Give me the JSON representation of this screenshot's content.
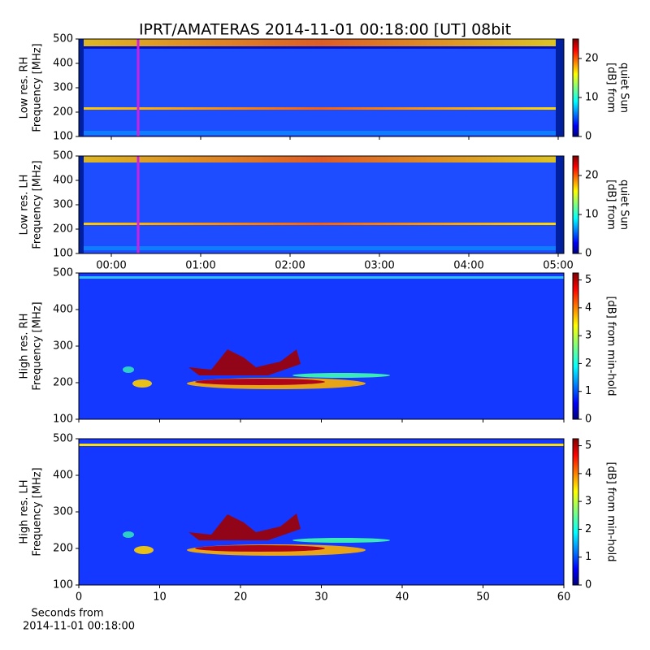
{
  "title": "IPRT/AMATERAS 2014-11-01 00:18:00 [UT]   08bit",
  "chart_data": [
    {
      "type": "spectrogram",
      "ylabel": [
        "Low res. RH",
        "Frequency [MHz]"
      ],
      "ylim": [
        100,
        500
      ],
      "yticks": [
        100,
        200,
        300,
        400,
        500
      ],
      "xlim": [
        -0.3636,
        5.0636
      ],
      "xticks": [
        {
          "value": 0,
          "label": "00:00"
        },
        {
          "value": 1,
          "label": "01:00"
        },
        {
          "value": 2,
          "label": "02:00"
        },
        {
          "value": 3,
          "label": "03:00"
        },
        {
          "value": 4,
          "label": "04:00"
        },
        {
          "value": 5,
          "label": "05:00"
        }
      ],
      "xticklabels": false,
      "marker": {
        "x": 0.3,
        "color": "#cc22dd"
      },
      "colorbar": {
        "label": [
          "[dB] from",
          "quiet Sun"
        ],
        "lim": [
          0,
          25
        ],
        "ticks": [
          0,
          10,
          20
        ]
      }
    },
    {
      "type": "spectrogram",
      "ylabel": [
        "Low res. LH",
        "Frequency [MHz]"
      ],
      "ylim": [
        100,
        500
      ],
      "yticks": [
        100,
        200,
        300,
        400,
        500
      ],
      "xlim": [
        -0.3636,
        5.0636
      ],
      "xticks": [
        {
          "value": 0,
          "label": "00:00"
        },
        {
          "value": 1,
          "label": "01:00"
        },
        {
          "value": 2,
          "label": "02:00"
        },
        {
          "value": 3,
          "label": "03:00"
        },
        {
          "value": 4,
          "label": "04:00"
        },
        {
          "value": 5,
          "label": "05:00"
        }
      ],
      "xticklabels": true,
      "marker": {
        "x": 0.3,
        "color": "#cc22dd"
      },
      "colorbar": {
        "label": [
          "[dB] from",
          "quiet Sun"
        ],
        "lim": [
          0,
          25
        ],
        "ticks": [
          0,
          10,
          20
        ]
      }
    },
    {
      "type": "spectrogram",
      "ylabel": [
        "High res. RH",
        "Frequency [MHz]"
      ],
      "ylim": [
        100,
        500
      ],
      "yticks": [
        100,
        200,
        300,
        400,
        500
      ],
      "xlim": [
        0,
        60
      ],
      "xticks": [
        0,
        10,
        20,
        30,
        40,
        50,
        60
      ],
      "xticklabels": false,
      "colorbar": {
        "label": [
          "[dB] from min-hold"
        ],
        "lim": [
          0,
          5.25
        ],
        "ticks": [
          0,
          1,
          2,
          3,
          4,
          5
        ]
      }
    },
    {
      "type": "spectrogram",
      "ylabel": [
        "High res. LH",
        "Frequency [MHz]"
      ],
      "ylim": [
        100,
        500
      ],
      "yticks": [
        100,
        200,
        300,
        400,
        500
      ],
      "xlim": [
        0,
        60
      ],
      "xticks": [
        0,
        10,
        20,
        30,
        40,
        50,
        60
      ],
      "xticklabels": true,
      "xlabel": [
        "Seconds from",
        "2014-11-01 00:18:00"
      ],
      "colorbar": {
        "label": [
          "[dB] from min-hold"
        ],
        "lim": [
          0,
          5.25
        ],
        "ticks": [
          0,
          1,
          2,
          3,
          4,
          5
        ]
      }
    }
  ]
}
